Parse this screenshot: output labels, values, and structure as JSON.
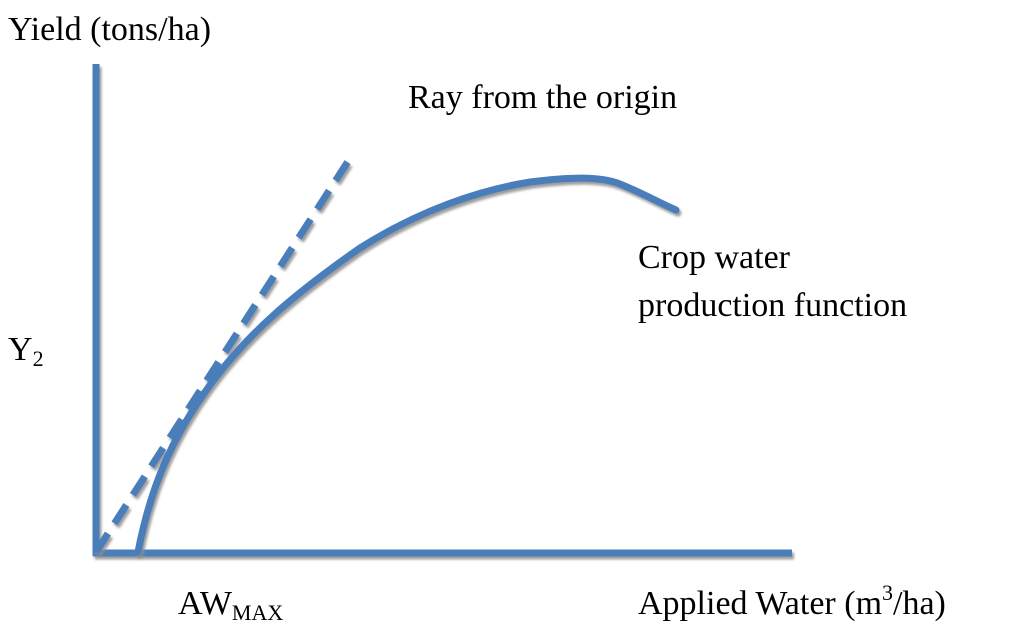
{
  "colors": {
    "line": "#4a7ebb",
    "shadow": "#9a9a9a",
    "text": "#000000"
  },
  "labels": {
    "y_axis": "Yield (tons/ha)",
    "x_axis_main": "Applied Water (m",
    "x_axis_sup": "3",
    "x_axis_end": "/ha)",
    "y2_main": "Y",
    "y2_sub": "2",
    "awmax_main": "AW",
    "awmax_sub": "MAX",
    "ray": "Ray from the origin",
    "crop_line1": "Crop water",
    "crop_line2": "production function"
  }
}
